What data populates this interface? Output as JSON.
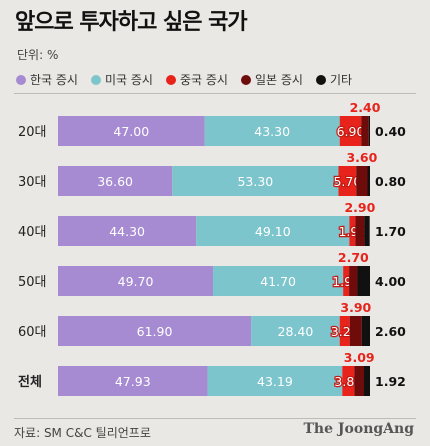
{
  "title": "앞으로 투자하고 싶은 국가",
  "unit_label": "단위: %",
  "source": "자료: SM C&C 틸리언프로",
  "logo": "The JoongAng",
  "chart_data": {
    "type": "bar",
    "orientation": "horizontal",
    "stacked": true,
    "categories": [
      "20대",
      "30대",
      "40대",
      "50대",
      "60대",
      "전체"
    ],
    "series": [
      {
        "name": "한국 증시",
        "color": "#a78bd2",
        "values": [
          47.0,
          36.6,
          44.3,
          49.7,
          61.9,
          47.93
        ],
        "labels": [
          "47.00",
          "36.60",
          "44.30",
          "49.70",
          "61.90",
          "47.93"
        ]
      },
      {
        "name": "미국 증시",
        "color": "#7cc5cd",
        "values": [
          43.3,
          53.3,
          49.1,
          41.7,
          28.4,
          43.19
        ],
        "labels": [
          "43.30",
          "53.30",
          "49.10",
          "41.70",
          "28.40",
          "43.19"
        ]
      },
      {
        "name": "중국 증시",
        "color": "#e8231c",
        "values": [
          6.9,
          5.7,
          1.9,
          1.9,
          3.2,
          3.87
        ],
        "labels": [
          "6.90",
          "5.70",
          "1.90",
          "1.90",
          "3.20",
          "3.87"
        ]
      },
      {
        "name": "일본 증시",
        "color": "#6e0b0b",
        "values": [
          2.4,
          3.6,
          2.9,
          2.7,
          3.9,
          3.09
        ],
        "labels": [
          "2.40",
          "3.60",
          "2.90",
          "2.70",
          "3.90",
          "3.09"
        ]
      },
      {
        "name": "기타",
        "color": "#111111",
        "values": [
          0.4,
          0.8,
          1.7,
          4.0,
          2.6,
          1.92
        ],
        "labels": [
          "0.40",
          "0.80",
          "1.70",
          "4.00",
          "2.60",
          "1.92"
        ]
      }
    ],
    "xlim": [
      0,
      100
    ],
    "legend_position": "top-left",
    "grid": false
  }
}
